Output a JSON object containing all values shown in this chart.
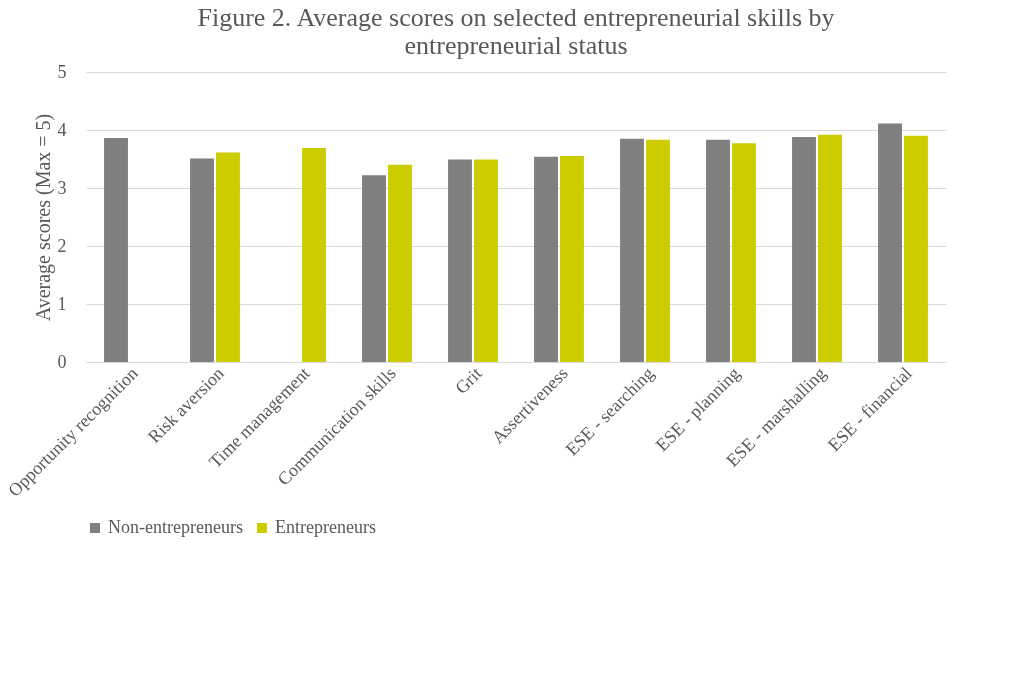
{
  "chart_data": {
    "type": "bar",
    "title": "Figure 2. Average scores on selected entrepreneurial skills by entrepreneurial status",
    "ylabel": "Average scores (Max = 5)",
    "categories": [
      "Opportunity recognition",
      "Risk aversion",
      "Time management",
      "Communication skills",
      "Grit",
      "Assertiveness",
      "ESE - searching",
      "ESE - planning",
      "ESE - marshalling",
      "ESE - financial"
    ],
    "series": [
      {
        "name": "Non-entrepreneurs",
        "color": "#7f7f7f",
        "values": [
          3.86,
          3.51,
          null,
          3.22,
          3.49,
          3.54,
          3.85,
          3.83,
          3.88,
          4.11
        ]
      },
      {
        "name": "Entrepreneurs",
        "color": "#cccc00",
        "values": [
          null,
          3.61,
          3.69,
          3.4,
          3.49,
          3.55,
          3.83,
          3.77,
          3.92,
          3.9
        ]
      }
    ],
    "ylim": [
      0,
      5
    ],
    "yticks": [
      0,
      1,
      2,
      3,
      4,
      5
    ],
    "grid": "y",
    "legend": "bottom"
  }
}
